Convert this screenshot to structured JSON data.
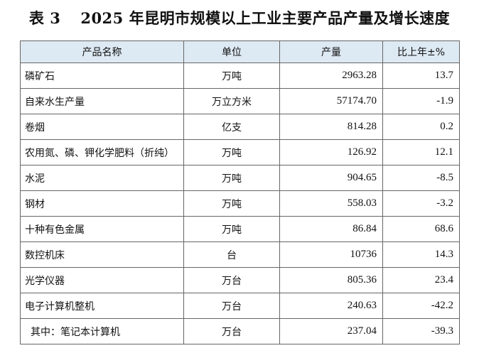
{
  "title": {
    "number": "表 3",
    "text": "2025 年昆明市规模以上工业主要产品产量及增长速度"
  },
  "table": {
    "headers": {
      "name": "产品名称",
      "unit": "单位",
      "quantity": "产量",
      "growth": "比上年±%"
    },
    "rows": [
      {
        "name": "磷矿石",
        "unit": "万吨",
        "quantity": "2963.28",
        "growth": "13.7"
      },
      {
        "name": "自来水生产量",
        "unit": "万立方米",
        "quantity": "57174.70",
        "growth": "-1.9"
      },
      {
        "name": "卷烟",
        "unit": "亿支",
        "quantity": "814.28",
        "growth": "0.2"
      },
      {
        "name": "农用氮、磷、钾化学肥料（折纯）",
        "unit": "万吨",
        "quantity": "126.92",
        "growth": "12.1"
      },
      {
        "name": "水泥",
        "unit": "万吨",
        "quantity": "904.65",
        "growth": "-8.5"
      },
      {
        "name": "钢材",
        "unit": "万吨",
        "quantity": "558.03",
        "growth": "-3.2"
      },
      {
        "name": "十种有色金属",
        "unit": "万吨",
        "quantity": "86.84",
        "growth": "68.6"
      },
      {
        "name": "数控机床",
        "unit": "台",
        "quantity": "10736",
        "growth": "14.3"
      },
      {
        "name": "光学仪器",
        "unit": "万台",
        "quantity": "805.36",
        "growth": "23.4"
      },
      {
        "name": "电子计算机整机",
        "unit": "万台",
        "quantity": "240.63",
        "growth": "-42.2"
      },
      {
        "name": "其中：笔记本计算机",
        "unit": "万台",
        "quantity": "237.04",
        "growth": "-39.3"
      }
    ]
  }
}
